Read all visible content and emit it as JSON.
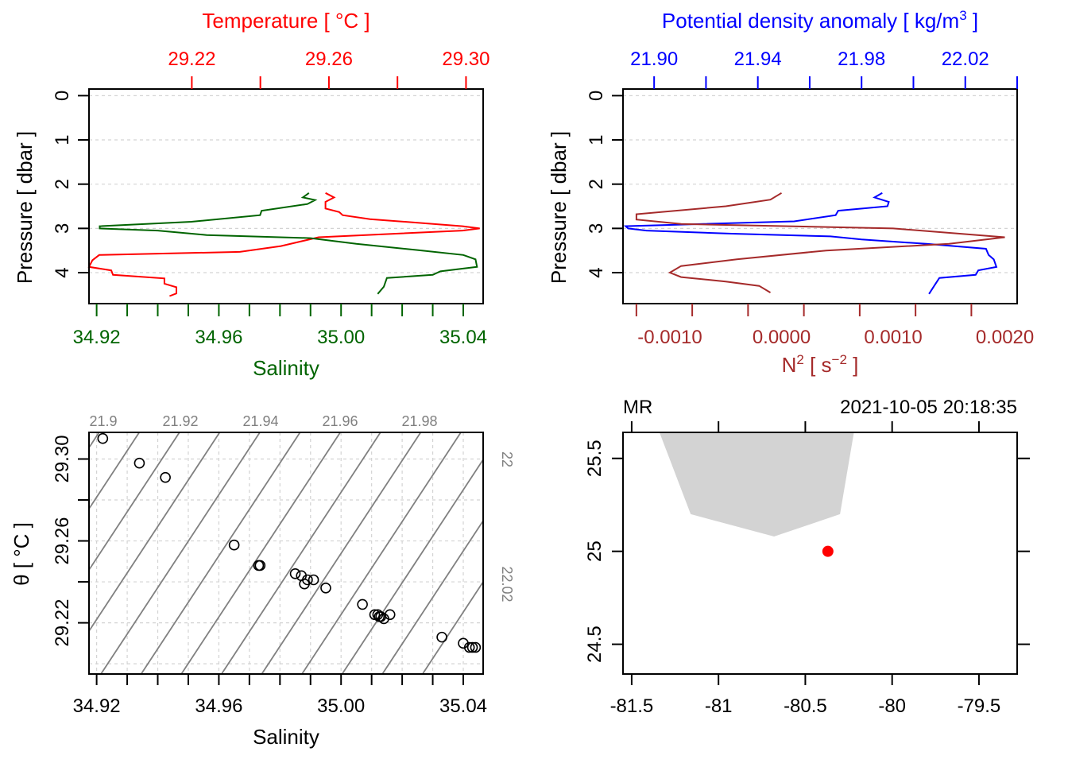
{
  "chart_data": [
    {
      "type": "line",
      "title": "",
      "top_axis_label": "Temperature [ °C ]",
      "bottom_axis_label": "Salinity",
      "ylabel": "Pressure [ dbar ]",
      "ylim": [
        4.7,
        -0.15
      ],
      "y_ticks": [
        "0",
        "1",
        "2",
        "3",
        "4"
      ],
      "x_top_range": [
        29.19,
        29.305
      ],
      "x_top_ticks": [
        "29.22",
        "29.26",
        "29.30"
      ],
      "x_bottom_range": [
        34.9175,
        35.0465
      ],
      "x_bottom_ticks": [
        "34.92",
        "34.96",
        "35.00",
        "35.04"
      ],
      "grid": "horizontal dashed",
      "series": [
        {
          "name": "Temperature",
          "color": "#ff0000",
          "axis": "top",
          "points": [
            [
              29.259,
              2.2
            ],
            [
              29.2615,
              2.3
            ],
            [
              29.259,
              2.4
            ],
            [
              29.259,
              2.55
            ],
            [
              29.263,
              2.63
            ],
            [
              29.264,
              2.7
            ],
            [
              29.272,
              2.79
            ],
            [
              29.299,
              2.95
            ],
            [
              29.304,
              3.0
            ],
            [
              29.299,
              3.05
            ],
            [
              29.257,
              3.2
            ],
            [
              29.246,
              3.4
            ],
            [
              29.234,
              3.53
            ],
            [
              29.193,
              3.6
            ],
            [
              29.191,
              3.72
            ],
            [
              29.19,
              3.87
            ],
            [
              29.1965,
              3.95
            ],
            [
              29.197,
              4.05
            ],
            [
              29.212,
              4.13
            ],
            [
              29.212,
              4.25
            ],
            [
              29.2155,
              4.33
            ],
            [
              29.2155,
              4.47
            ],
            [
              29.2135,
              4.53
            ]
          ]
        },
        {
          "name": "Salinity",
          "color": "#006400",
          "axis": "bottom",
          "points": [
            [
              34.9895,
              2.2
            ],
            [
              34.9875,
              2.3
            ],
            [
              34.9915,
              2.36
            ],
            [
              34.989,
              2.45
            ],
            [
              34.974,
              2.6
            ],
            [
              34.9735,
              2.7
            ],
            [
              34.951,
              2.85
            ],
            [
              34.921,
              2.95
            ],
            [
              34.921,
              3.0
            ],
            [
              34.94,
              3.05
            ],
            [
              34.956,
              3.15
            ],
            [
              34.99,
              3.22
            ],
            [
              35.005,
              3.35
            ],
            [
              35.025,
              3.49
            ],
            [
              35.04,
              3.6
            ],
            [
              35.044,
              3.7
            ],
            [
              35.0445,
              3.87
            ],
            [
              35.0325,
              3.97
            ],
            [
              35.03,
              4.05
            ],
            [
              35.015,
              4.12
            ],
            [
              35.014,
              4.32
            ],
            [
              35.012,
              4.48
            ]
          ]
        }
      ]
    },
    {
      "type": "line",
      "top_axis_label": "Potential density anomaly [ kg/m3 ]",
      "bottom_axis_label": "N2 [ s-2 ]",
      "ylabel": "Pressure [ dbar ]",
      "ylim": [
        4.7,
        -0.15
      ],
      "y_ticks": [
        "0",
        "1",
        "2",
        "3",
        "4"
      ],
      "x_top_range": [
        21.888,
        22.04
      ],
      "x_top_ticks": [
        "21.90",
        "21.94",
        "21.98",
        "22.02"
      ],
      "x_bottom_range": [
        -0.00142,
        0.00211
      ],
      "x_bottom_ticks": [
        "-0.0010",
        "0.0000",
        "0.0010",
        "0.0020"
      ],
      "grid": "horizontal dashed",
      "series": [
        {
          "name": "Potential density anomaly",
          "color": "#0000ff",
          "axis": "top",
          "points": [
            [
              21.988,
              2.2
            ],
            [
              21.985,
              2.3
            ],
            [
              21.9905,
              2.4
            ],
            [
              21.99,
              2.5
            ],
            [
              21.971,
              2.6
            ],
            [
              21.97,
              2.7
            ],
            [
              21.954,
              2.84
            ],
            [
              21.889,
              2.95
            ],
            [
              21.89,
              3.0
            ],
            [
              21.897,
              3.05
            ],
            [
              21.93,
              3.12
            ],
            [
              21.968,
              3.18
            ],
            [
              21.98,
              3.25
            ],
            [
              22.005,
              3.35
            ],
            [
              22.028,
              3.46
            ],
            [
              22.029,
              3.6
            ],
            [
              22.031,
              3.7
            ],
            [
              22.032,
              3.87
            ],
            [
              22.025,
              3.95
            ],
            [
              22.024,
              4.05
            ],
            [
              22.01,
              4.12
            ],
            [
              22.008,
              4.3
            ],
            [
              22.006,
              4.48
            ]
          ]
        },
        {
          "name": "N2",
          "color": "#a52a2a",
          "axis": "bottom",
          "points": [
            [
              0.0,
              2.2
            ],
            [
              -0.0001,
              2.35
            ],
            [
              -0.0005,
              2.5
            ],
            [
              -0.0013,
              2.68
            ],
            [
              -0.0013,
              2.8
            ],
            [
              -0.0009,
              2.9
            ],
            [
              0.001,
              3.0
            ],
            [
              0.002,
              3.2
            ],
            [
              0.0015,
              3.35
            ],
            [
              0.0004,
              3.5
            ],
            [
              -0.0004,
              3.7
            ],
            [
              -0.0009,
              3.85
            ],
            [
              -0.001,
              4.0
            ],
            [
              -0.0009,
              4.1
            ],
            [
              -0.0005,
              4.2
            ],
            [
              -0.0002,
              4.3
            ],
            [
              -0.0001,
              4.45
            ]
          ]
        }
      ]
    },
    {
      "type": "scatter",
      "xlabel": "Salinity",
      "ylabel": "θ [ °C ]",
      "xlim": [
        34.9175,
        35.0465
      ],
      "ylim": [
        29.195,
        29.313
      ],
      "x_ticks": [
        "34.92",
        "34.96",
        "35.00",
        "35.04"
      ],
      "y_ticks": [
        "29.22",
        "29.26",
        "29.30"
      ],
      "grid": "dashed",
      "isopycnal_labels_top": [
        "21.9",
        "21.92",
        "21.94",
        "21.96",
        "21.98"
      ],
      "isopycnal_labels_right": [
        "22",
        "22.02"
      ],
      "isopycnals": [
        21.9,
        21.91,
        21.92,
        21.93,
        21.94,
        21.95,
        21.96,
        21.97,
        21.98,
        21.99,
        22.0,
        22.01,
        22.02
      ],
      "points": [
        [
          34.922,
          29.31
        ],
        [
          34.934,
          29.298
        ],
        [
          34.9425,
          29.291
        ],
        [
          34.965,
          29.258
        ],
        [
          34.973,
          29.248
        ],
        [
          34.9735,
          29.248
        ],
        [
          34.985,
          29.244
        ],
        [
          34.987,
          29.243
        ],
        [
          34.988,
          29.239
        ],
        [
          34.989,
          29.241
        ],
        [
          34.991,
          29.241
        ],
        [
          34.995,
          29.237
        ],
        [
          35.007,
          29.229
        ],
        [
          35.011,
          29.224
        ],
        [
          35.012,
          29.224
        ],
        [
          35.0125,
          29.223
        ],
        [
          35.013,
          29.223
        ],
        [
          35.014,
          29.222
        ],
        [
          35.016,
          29.224
        ],
        [
          35.033,
          29.213
        ],
        [
          35.04,
          29.21
        ],
        [
          35.042,
          29.208
        ],
        [
          35.043,
          29.208
        ],
        [
          35.044,
          29.208
        ]
      ]
    },
    {
      "type": "map",
      "label_left": "MR",
      "label_right": "2021-10-05 20:18:35",
      "xlim": [
        -81.55,
        -79.28
      ],
      "ylim": [
        24.34,
        25.64
      ],
      "x_ticks": [
        "-81.5",
        "-81",
        "-80.5",
        "-80",
        "-79.5"
      ],
      "y_ticks": [
        "24.5",
        "25",
        "25.5"
      ],
      "land_color": "#d3d3d3",
      "land_polygon": [
        [
          -81.34,
          25.64
        ],
        [
          -81.16,
          25.2
        ],
        [
          -80.68,
          25.08
        ],
        [
          -80.3,
          25.2
        ],
        [
          -80.22,
          25.64
        ]
      ],
      "station": {
        "lon": -80.37,
        "lat": 25.0,
        "color": "#ff0000"
      }
    }
  ]
}
